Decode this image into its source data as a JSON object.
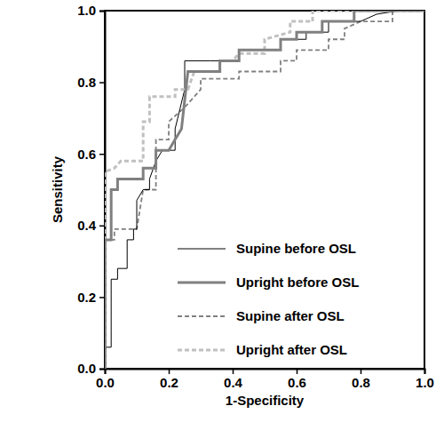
{
  "chart_data": {
    "type": "line",
    "x_label": "1-Specificity",
    "y_label": "Sensitivity",
    "xlim": [
      0,
      1
    ],
    "ylim": [
      0,
      1
    ],
    "xticks": [
      {
        "value": 0,
        "label": "0.0"
      },
      {
        "value": 0.2,
        "label": "0.2"
      },
      {
        "value": 0.4,
        "label": "0.4"
      },
      {
        "value": 0.6,
        "label": "0.6"
      },
      {
        "value": 0.8,
        "label": "0.8"
      },
      {
        "value": 1,
        "label": "1.0"
      }
    ],
    "yticks": [
      {
        "value": 0,
        "label": "0.0"
      },
      {
        "value": 0.2,
        "label": "0.2"
      },
      {
        "value": 0.4,
        "label": "0.4"
      },
      {
        "value": 0.6,
        "label": "0.6"
      },
      {
        "value": 0.8,
        "label": "0.8"
      },
      {
        "value": 1,
        "label": "1.0"
      }
    ],
    "grid": false,
    "legend": "lower right",
    "series": [
      {
        "name": "Supine before OSL",
        "color": "#000000",
        "line_style": "solid",
        "x": [
          0,
          0,
          0.02,
          0.02,
          0.04,
          0.04,
          0.07,
          0.07,
          0.09,
          0.09,
          0.1,
          0.1,
          0.12,
          0.14,
          0.14,
          0.16,
          0.18,
          0.22,
          0.22,
          0.25,
          0.25,
          0.33,
          0.42,
          0.42,
          0.55,
          0.55,
          0.63,
          0.63,
          0.7,
          0.7,
          0.8,
          0.85,
          0.92,
          1
        ],
        "values": [
          0,
          0.06,
          0.06,
          0.25,
          0.25,
          0.28,
          0.28,
          0.36,
          0.36,
          0.39,
          0.39,
          0.47,
          0.5,
          0.5,
          0.53,
          0.58,
          0.61,
          0.61,
          0.67,
          0.78,
          0.86,
          0.86,
          0.86,
          0.89,
          0.89,
          0.92,
          0.92,
          0.94,
          0.94,
          0.97,
          0.97,
          0.99,
          1,
          1
        ]
      },
      {
        "name": "Upright before OSL",
        "color": "#808080",
        "line_style": "solid",
        "x": [
          0,
          0,
          0.02,
          0.02,
          0.04,
          0.04,
          0.12,
          0.12,
          0.16,
          0.16,
          0.2,
          0.22,
          0.24,
          0.26,
          0.36,
          0.36,
          0.42,
          0.42,
          0.55,
          0.55,
          0.6,
          0.6,
          0.68,
          0.68,
          0.78,
          0.78,
          1
        ],
        "values": [
          0,
          0.36,
          0.36,
          0.5,
          0.5,
          0.53,
          0.53,
          0.56,
          0.56,
          0.61,
          0.61,
          0.64,
          0.67,
          0.83,
          0.83,
          0.86,
          0.86,
          0.89,
          0.89,
          0.92,
          0.92,
          0.94,
          0.94,
          0.97,
          0.97,
          1,
          1
        ]
      },
      {
        "name": "Supine after OSL",
        "color": "#808080",
        "line_style": "dashed",
        "x": [
          0,
          0,
          0.03,
          0.03,
          0.1,
          0.12,
          0.16,
          0.16,
          0.2,
          0.2,
          0.25,
          0.3,
          0.3,
          0.42,
          0.42,
          0.55,
          0.55,
          0.6,
          0.6,
          0.7,
          0.7,
          0.75,
          0.75,
          0.8,
          0.9,
          0.9,
          1
        ],
        "values": [
          0,
          0.36,
          0.36,
          0.39,
          0.39,
          0.5,
          0.5,
          0.64,
          0.64,
          0.69,
          0.73,
          0.78,
          0.81,
          0.81,
          0.83,
          0.83,
          0.86,
          0.86,
          0.89,
          0.89,
          0.92,
          0.92,
          0.95,
          0.97,
          0.97,
          1,
          1
        ]
      },
      {
        "name": "Upright after OSL",
        "color": "#c0c0c0",
        "line_style": "dashed",
        "x": [
          0,
          0,
          0.03,
          0.05,
          0.12,
          0.12,
          0.14,
          0.14,
          0.22,
          0.22,
          0.26,
          0.28,
          0.36,
          0.36,
          0.4,
          0.42,
          0.5,
          0.5,
          0.58,
          0.58,
          0.65,
          0.65,
          1
        ],
        "values": [
          0,
          0.55,
          0.56,
          0.58,
          0.58,
          0.69,
          0.69,
          0.76,
          0.76,
          0.78,
          0.78,
          0.83,
          0.83,
          0.86,
          0.86,
          0.88,
          0.88,
          0.92,
          0.94,
          0.97,
          0.97,
          1,
          1
        ]
      }
    ]
  }
}
